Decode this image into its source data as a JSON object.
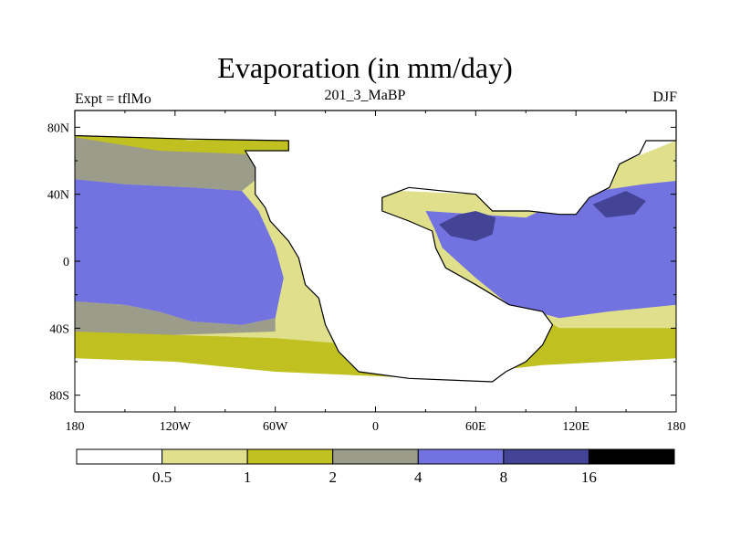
{
  "chart_data": {
    "type": "heatmap",
    "title": "Evaporation (in mm/day)",
    "left_string": "Expt = tflMo",
    "center_string": "201_3_MaBP",
    "right_string": "DJF",
    "x_axis": {
      "range": [
        -180,
        180
      ],
      "ticks": [
        -180,
        -120,
        -60,
        0,
        60,
        120,
        180
      ],
      "tick_labels": [
        "180",
        "120W",
        "60W",
        "0",
        "60E",
        "120E",
        "180"
      ]
    },
    "y_axis": {
      "range": [
        -90,
        90
      ],
      "ticks": [
        80,
        40,
        0,
        -40,
        -80
      ],
      "tick_labels": [
        "80N",
        "40N",
        "0",
        "40S",
        "80S"
      ]
    },
    "colorbar": {
      "boundaries": [
        0.5,
        1,
        2,
        4,
        8,
        16
      ],
      "labels": [
        "0.5",
        "1",
        "2",
        "4",
        "8",
        "16"
      ],
      "colors": [
        "#ffffff",
        "#e0e08c",
        "#c0c020",
        "#9c9c8a",
        "#7272e0",
        "#444496",
        "#000000"
      ]
    },
    "regions": [
      {
        "band": "0.5-1",
        "polygons": [
          [
            [
              -180,
              75
            ],
            [
              -128,
              79
            ],
            [
              -78,
              80
            ],
            [
              -50,
              78
            ],
            [
              -20,
              72
            ],
            [
              -12,
              68
            ],
            [
              -8,
              50
            ],
            [
              15,
              42
            ],
            [
              60,
              40
            ],
            [
              110,
              48
            ],
            [
              150,
              60
            ],
            [
              180,
              72
            ],
            [
              180,
              -42
            ],
            [
              100,
              -42
            ],
            [
              60,
              -42
            ],
            [
              40,
              -46
            ],
            [
              -10,
              -52
            ],
            [
              -60,
              -50
            ],
            [
              -120,
              -46
            ],
            [
              -180,
              -44
            ]
          ]
        ]
      },
      {
        "band": "1-2",
        "polygons": [
          [
            [
              -180,
              78
            ],
            [
              -128,
              77
            ],
            [
              -112,
              72
            ],
            [
              -78,
              74
            ],
            [
              -50,
              77
            ],
            [
              -40,
              72
            ],
            [
              -45,
              62
            ],
            [
              -78,
              64
            ],
            [
              -110,
              62
            ],
            [
              -130,
              66
            ],
            [
              -180,
              70
            ]
          ],
          [
            [
              -180,
              -40
            ],
            [
              -120,
              -44
            ],
            [
              -60,
              -46
            ],
            [
              -10,
              -50
            ],
            [
              40,
              -44
            ],
            [
              80,
              -36
            ],
            [
              100,
              -34
            ],
            [
              110,
              -40
            ],
            [
              180,
              -40
            ],
            [
              180,
              -58
            ],
            [
              100,
              -62
            ],
            [
              30,
              -70
            ],
            [
              -60,
              -66
            ],
            [
              -120,
              -60
            ],
            [
              -180,
              -58
            ]
          ]
        ]
      },
      {
        "band": "2-4",
        "polygons": [
          [
            [
              -180,
              74
            ],
            [
              -130,
              66
            ],
            [
              -78,
              64
            ],
            [
              -45,
              62
            ],
            [
              -55,
              56
            ],
            [
              -70,
              50
            ],
            [
              -80,
              42
            ],
            [
              -110,
              44
            ],
            [
              -150,
              46
            ],
            [
              -180,
              49
            ]
          ],
          [
            [
              -180,
              -24
            ],
            [
              -150,
              -26
            ],
            [
              -130,
              -30
            ],
            [
              -110,
              -36
            ],
            [
              -80,
              -38
            ],
            [
              -60,
              -34
            ],
            [
              -60,
              -42
            ],
            [
              -120,
              -44
            ],
            [
              -180,
              -42
            ]
          ]
        ]
      },
      {
        "band": "4-8",
        "polygons": [
          [
            [
              -180,
              49
            ],
            [
              -150,
              46
            ],
            [
              -110,
              44
            ],
            [
              -80,
              42
            ],
            [
              -70,
              30
            ],
            [
              -60,
              8
            ],
            [
              -55,
              -10
            ],
            [
              -60,
              -34
            ],
            [
              -80,
              -38
            ],
            [
              -110,
              -36
            ],
            [
              -130,
              -30
            ],
            [
              -150,
              -26
            ],
            [
              -180,
              -24
            ]
          ],
          [
            [
              30,
              30
            ],
            [
              90,
              26
            ],
            [
              120,
              40
            ],
            [
              160,
              46
            ],
            [
              180,
              48
            ],
            [
              180,
              -26
            ],
            [
              140,
              -30
            ],
            [
              110,
              -34
            ],
            [
              80,
              -26
            ],
            [
              60,
              -10
            ],
            [
              40,
              8
            ],
            [
              35,
              20
            ]
          ]
        ]
      },
      {
        "band": "8-16",
        "polygons": [
          [
            [
              38,
              22
            ],
            [
              50,
              28
            ],
            [
              60,
              30
            ],
            [
              72,
              26
            ],
            [
              70,
              16
            ],
            [
              60,
              12
            ],
            [
              45,
              15
            ]
          ],
          [
            [
              130,
              34
            ],
            [
              150,
              42
            ],
            [
              162,
              36
            ],
            [
              155,
              28
            ],
            [
              138,
              26
            ]
          ]
        ]
      }
    ],
    "land_mass": [
      [
        -180,
        75
      ],
      [
        -112,
        73
      ],
      [
        -52,
        72
      ],
      [
        -52,
        66
      ],
      [
        -78,
        66
      ],
      [
        -72,
        56
      ],
      [
        -72,
        40
      ],
      [
        -66,
        32
      ],
      [
        -63,
        24
      ],
      [
        -52,
        12
      ],
      [
        -46,
        2
      ],
      [
        -42,
        -14
      ],
      [
        -34,
        -22
      ],
      [
        -30,
        -38
      ],
      [
        -22,
        -54
      ],
      [
        -10,
        -66
      ],
      [
        20,
        -70
      ],
      [
        70,
        -72
      ],
      [
        78,
        -66
      ],
      [
        90,
        -60
      ],
      [
        100,
        -50
      ],
      [
        106,
        -38
      ],
      [
        100,
        -30
      ],
      [
        80,
        -26
      ],
      [
        60,
        -14
      ],
      [
        42,
        -4
      ],
      [
        36,
        8
      ],
      [
        34,
        18
      ],
      [
        20,
        24
      ],
      [
        4,
        30
      ],
      [
        4,
        38
      ],
      [
        20,
        44
      ],
      [
        60,
        40
      ],
      [
        70,
        30
      ],
      [
        92,
        30
      ],
      [
        110,
        28
      ],
      [
        120,
        28
      ],
      [
        128,
        38
      ],
      [
        140,
        44
      ],
      [
        146,
        58
      ],
      [
        158,
        64
      ],
      [
        162,
        72
      ],
      [
        180,
        72
      ],
      [
        180,
        90
      ],
      [
        -180,
        90
      ]
    ]
  }
}
